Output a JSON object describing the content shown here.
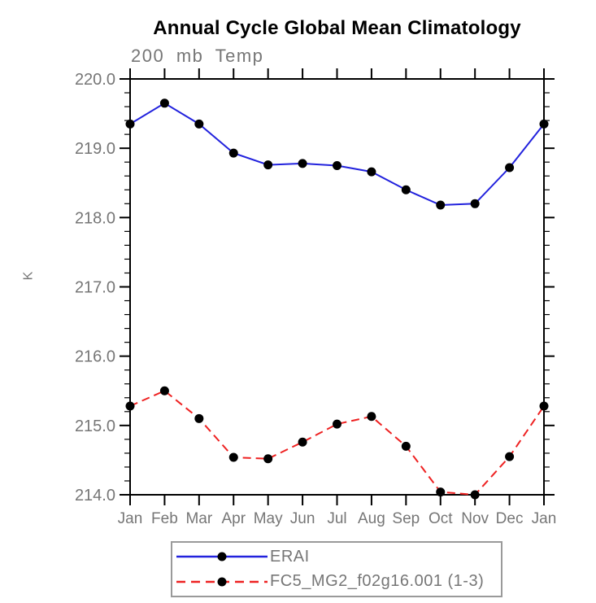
{
  "title": "Annual Cycle Global Mean Climatology",
  "subtitle": "200 mb Temp",
  "colors": {
    "title": "#000000",
    "gray_text": "#767676",
    "axis": "#000000",
    "legend_border": "#9a9a9a",
    "erai_blue": "#2222dd",
    "fc5_red": "#ee2222",
    "marker_black": "#000000"
  },
  "chart_data": {
    "type": "line",
    "title": "Annual Cycle Global Mean Climatology",
    "subtitle": "200 mb Temp",
    "ylabel": "K",
    "xlabel": "",
    "categories": [
      "Jan",
      "Feb",
      "Mar",
      "Apr",
      "May",
      "Jun",
      "Jul",
      "Aug",
      "Sep",
      "Oct",
      "Nov",
      "Dec",
      "Jan"
    ],
    "series": [
      {
        "name": "ERAI",
        "color": "#2222dd",
        "style": "solid",
        "marker": "circle",
        "marker_color": "#000000",
        "values": [
          219.35,
          219.65,
          219.35,
          218.93,
          218.76,
          218.78,
          218.75,
          218.66,
          218.4,
          218.18,
          218.2,
          218.72,
          219.35
        ]
      },
      {
        "name": "FC5_MG2_f02g16.001 (1-3)",
        "color": "#ee2222",
        "style": "dashed",
        "marker": "circle",
        "marker_color": "#000000",
        "values": [
          215.28,
          215.5,
          215.1,
          214.54,
          214.52,
          214.76,
          215.02,
          215.13,
          214.7,
          214.04,
          214.0,
          214.55,
          215.28
        ]
      }
    ],
    "ylim": [
      214.0,
      220.0
    ],
    "ytick_interval": 1.0,
    "y_minor_interval": 0.2,
    "yticks": [
      "220.0",
      "219.0",
      "218.0",
      "217.0",
      "216.0",
      "215.0",
      "214.0"
    ],
    "grid": false,
    "legend_position": "bottom",
    "axes": "box with outward ticks, top and bottom month ticks, left and right value ticks"
  },
  "legend": {
    "items": [
      {
        "label": "ERAI"
      },
      {
        "label": "FC5_MG2_f02g16.001 (1-3)"
      }
    ]
  }
}
